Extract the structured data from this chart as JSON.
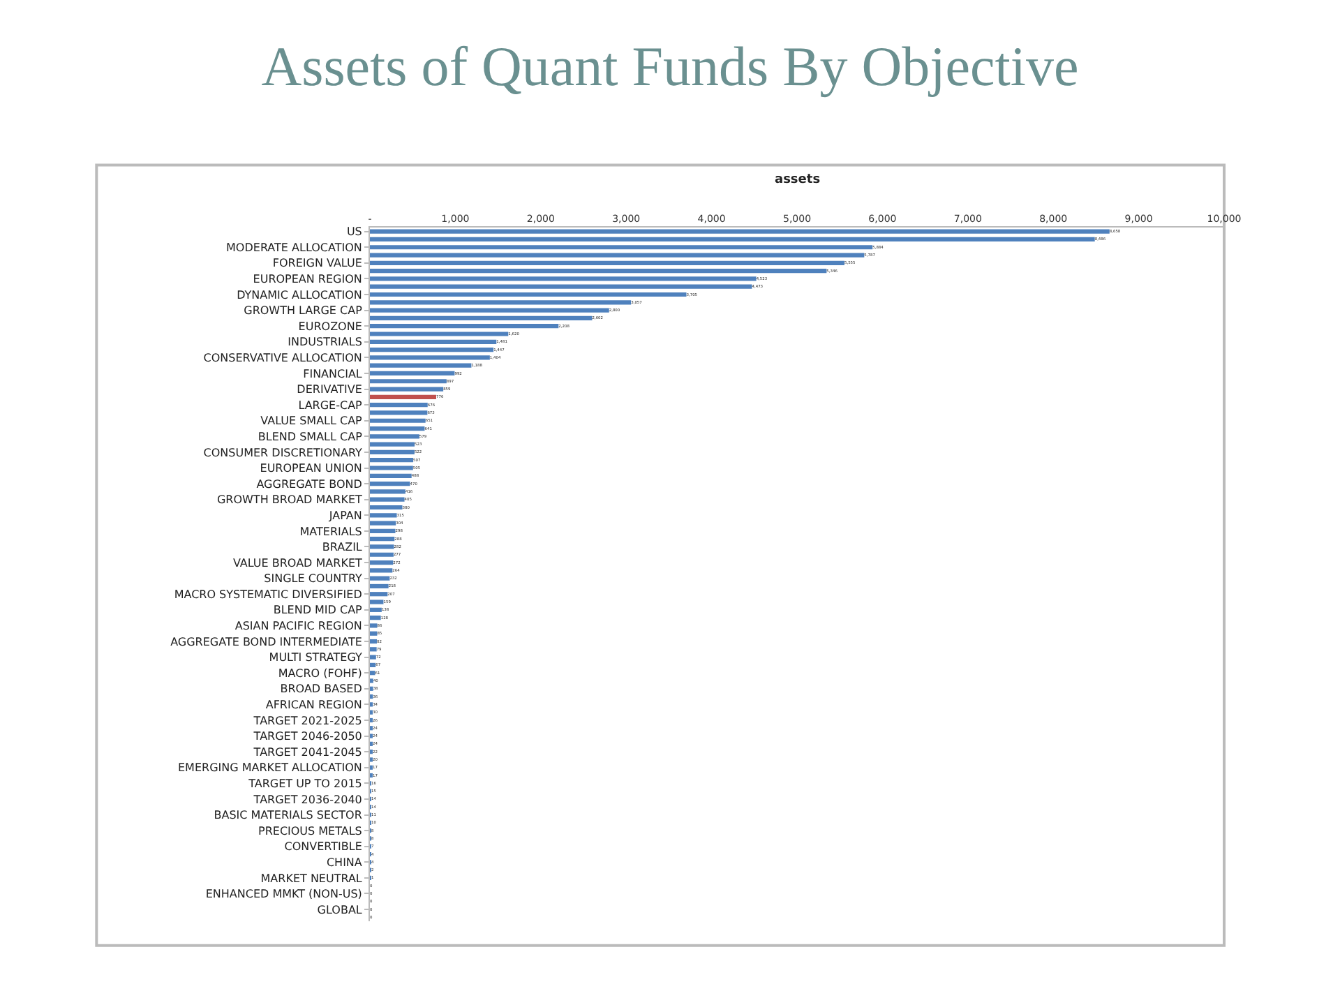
{
  "chart_data": {
    "type": "bar",
    "orientation": "horizontal",
    "title": "Assets of Quant Funds By Objective",
    "subtitle": "assets",
    "categories": [
      "US",
      null,
      "MODERATE ALLOCATION",
      null,
      "FOREIGN VALUE",
      null,
      "EUROPEAN REGION",
      null,
      "DYNAMIC ALLOCATION",
      null,
      "GROWTH LARGE CAP",
      null,
      "EUROZONE",
      null,
      "INDUSTRIALS",
      null,
      "CONSERVATIVE ALLOCATION",
      null,
      "FINANCIAL",
      null,
      "DERIVATIVE",
      null,
      "LARGE-CAP",
      null,
      "VALUE SMALL CAP",
      null,
      "BLEND SMALL CAP",
      null,
      "CONSUMER DISCRETIONARY",
      null,
      "EUROPEAN UNION",
      null,
      "AGGREGATE BOND",
      null,
      "GROWTH BROAD MARKET",
      null,
      "JAPAN",
      null,
      "MATERIALS",
      null,
      "BRAZIL",
      null,
      "VALUE BROAD MARKET",
      null,
      "SINGLE COUNTRY",
      null,
      "MACRO SYSTEMATIC DIVERSIFIED",
      null,
      "BLEND MID CAP",
      null,
      "ASIAN PACIFIC REGION",
      null,
      "AGGREGATE BOND INTERMEDIATE",
      null,
      "MULTI STRATEGY",
      null,
      "MACRO (FOHF)",
      null,
      "BROAD BASED",
      null,
      "AFRICAN REGION",
      null,
      "TARGET 2021-2025",
      null,
      "TARGET 2046-2050",
      null,
      "TARGET 2041-2045",
      null,
      "EMERGING MARKET ALLOCATION",
      null,
      "TARGET UP TO 2015",
      null,
      "TARGET 2036-2040",
      null,
      "BASIC MATERIALS SECTOR",
      null,
      "PRECIOUS METALS",
      null,
      "CONVERTIBLE",
      null,
      "CHINA",
      null,
      "MARKET NEUTRAL",
      null,
      "ENHANCED MMKT (NON-US)",
      null,
      "GLOBAL",
      null
    ],
    "values": [
      8658,
      8486,
      5884,
      5787,
      5555,
      5346,
      4523,
      4473,
      3705,
      3057,
      2800,
      2602,
      2208,
      1620,
      1481,
      1447,
      1404,
      1188,
      992,
      897,
      859,
      776,
      676,
      673,
      651,
      641,
      579,
      523,
      522,
      507,
      505,
      488,
      470,
      416,
      405,
      380,
      315,
      304,
      298,
      288,
      282,
      277,
      272,
      264,
      232,
      218,
      207,
      159,
      138,
      128,
      86,
      85,
      82,
      79,
      72,
      67,
      61,
      40,
      38,
      36,
      34,
      30,
      26,
      24,
      24,
      24,
      22,
      20,
      17,
      17,
      16,
      15,
      14,
      14,
      11,
      10,
      8,
      8,
      7,
      4,
      4,
      2,
      1,
      0,
      0,
      0,
      0,
      0
    ],
    "colors": [
      "#4f81bd",
      "#4f81bd",
      "#4f81bd",
      "#4f81bd",
      "#4f81bd",
      "#4f81bd",
      "#4f81bd",
      "#4f81bd",
      "#4f81bd",
      "#4f81bd",
      "#4f81bd",
      "#4f81bd",
      "#4f81bd",
      "#4f81bd",
      "#4f81bd",
      "#4f81bd",
      "#4f81bd",
      "#4f81bd",
      "#4f81bd",
      "#4f81bd",
      "#4f81bd",
      "#c0504d",
      "#4f81bd",
      "#4f81bd",
      "#4f81bd",
      "#4f81bd",
      "#4f81bd",
      "#4f81bd",
      "#4f81bd",
      "#4f81bd",
      "#4f81bd",
      "#4f81bd",
      "#4f81bd",
      "#4f81bd",
      "#4f81bd",
      "#4f81bd",
      "#4f81bd",
      "#4f81bd",
      "#4f81bd",
      "#4f81bd",
      "#4f81bd",
      "#4f81bd",
      "#4f81bd",
      "#4f81bd",
      "#4f81bd",
      "#4f81bd",
      "#4f81bd",
      "#4f81bd",
      "#4f81bd",
      "#4f81bd",
      "#4f81bd",
      "#4f81bd",
      "#4f81bd",
      "#4f81bd",
      "#4f81bd",
      "#4f81bd",
      "#4f81bd",
      "#4f81bd",
      "#4f81bd",
      "#4f81bd",
      "#4f81bd",
      "#4f81bd",
      "#4f81bd",
      "#4f81bd",
      "#4f81bd",
      "#4f81bd",
      "#4f81bd",
      "#4f81bd",
      "#4f81bd",
      "#4f81bd",
      "#4f81bd",
      "#4f81bd",
      "#4f81bd",
      "#4f81bd",
      "#4f81bd",
      "#4f81bd",
      "#4f81bd",
      "#4f81bd",
      "#4f81bd",
      "#4f81bd",
      "#4f81bd",
      "#4f81bd",
      "#4f81bd",
      "#4f81bd",
      "#4f81bd",
      "#4f81bd",
      "#4f81bd",
      "#4f81bd"
    ],
    "value_labels": [
      "8,658",
      "8,486",
      "5,884",
      "5,787",
      "5,555",
      "5,346",
      "4,523",
      "4,473",
      "3,705",
      "3,057",
      "2,800",
      "2,602",
      "2,208",
      "1,620",
      "1,481",
      "1,447",
      "1,404",
      "1,188",
      "992",
      "897",
      "859",
      "776",
      "676",
      "673",
      "651",
      "641",
      "579",
      "523",
      "522",
      "507",
      "505",
      "488",
      "470",
      "416",
      "405",
      "380",
      "315",
      "304",
      "298",
      "288",
      "282",
      "277",
      "272",
      "264",
      "232",
      "218",
      "207",
      "159",
      "138",
      "128",
      "86",
      "85",
      "82",
      "79",
      "72",
      "67",
      "61",
      "40",
      "38",
      "36",
      "34",
      "30",
      "26",
      "24",
      "24",
      "24",
      "22",
      "20",
      "17",
      "17",
      "16",
      "15",
      "14",
      "14",
      "11",
      "10",
      "8",
      "8",
      "7",
      "4",
      "4",
      "2",
      "1",
      "0",
      "0",
      "0",
      "0",
      "0"
    ],
    "xlim": [
      0,
      10000
    ],
    "xticks": [
      {
        "value": 0,
        "label": "-"
      },
      {
        "value": 1000,
        "label": "1,000"
      },
      {
        "value": 2000,
        "label": "2,000"
      },
      {
        "value": 3000,
        "label": "3,000"
      },
      {
        "value": 4000,
        "label": "4,000"
      },
      {
        "value": 5000,
        "label": "5,000"
      },
      {
        "value": 6000,
        "label": "6,000"
      },
      {
        "value": 7000,
        "label": "7,000"
      },
      {
        "value": 8000,
        "label": "8,000"
      },
      {
        "value": 9000,
        "label": "9,000"
      },
      {
        "value": 10000,
        "label": "10,000"
      }
    ],
    "grid": false,
    "legend": false
  }
}
